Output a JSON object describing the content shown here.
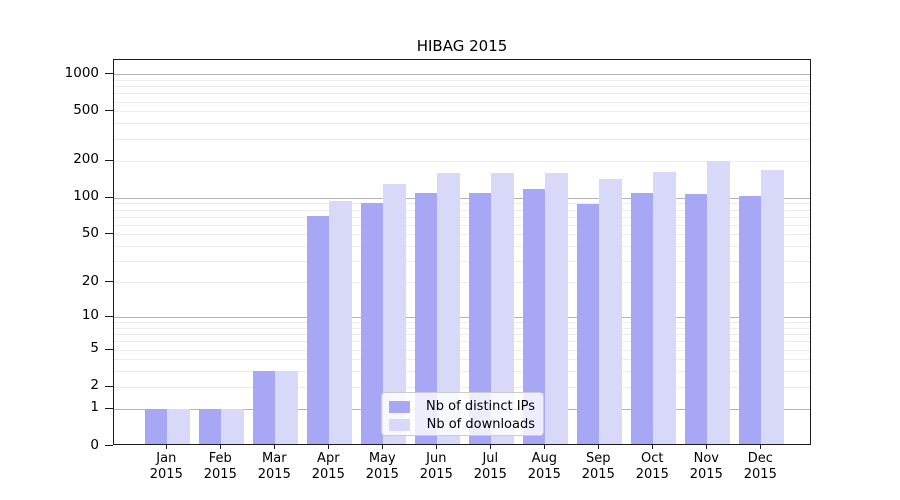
{
  "title": "HIBAG 2015",
  "chart_data": {
    "type": "bar",
    "title": "HIBAG 2015",
    "categories": [
      "Jan",
      "Feb",
      "Mar",
      "Apr",
      "May",
      "Jun",
      "Jul",
      "Aug",
      "Sep",
      "Oct",
      "Nov",
      "Dec"
    ],
    "category_year": "2015",
    "series": [
      {
        "name": "Nb of distinct IPs",
        "color": "#a7a7f6",
        "values": [
          1,
          1,
          3,
          71,
          91,
          109,
          109,
          118,
          88,
          110,
          107,
          103
        ]
      },
      {
        "name": "Nb of downloads",
        "color": "#d8d8f9",
        "values": [
          1,
          1,
          3,
          93,
          128,
          159,
          158,
          160,
          143,
          162,
          200,
          167
        ]
      }
    ],
    "xlabel": "",
    "ylabel": "",
    "y_axis": {
      "scale": "log1p",
      "tick_values": [
        0,
        1,
        2,
        5,
        10,
        20,
        50,
        100,
        200,
        500,
        1000
      ],
      "ylim": [
        0,
        1300
      ],
      "major_gridline_values": [
        1,
        10,
        100,
        1000
      ],
      "minor_gridline_values": [
        2,
        3,
        4,
        5,
        6,
        7,
        8,
        9,
        20,
        30,
        40,
        50,
        60,
        70,
        80,
        90,
        200,
        300,
        400,
        500,
        600,
        700,
        800,
        900
      ]
    },
    "grid": {
      "on": true,
      "major_color": "#b4b4b4",
      "minor_color": "#ececec"
    },
    "legend": {
      "position": "lower-center",
      "entries": [
        "Nb of distinct IPs",
        "Nb of downloads"
      ]
    }
  }
}
